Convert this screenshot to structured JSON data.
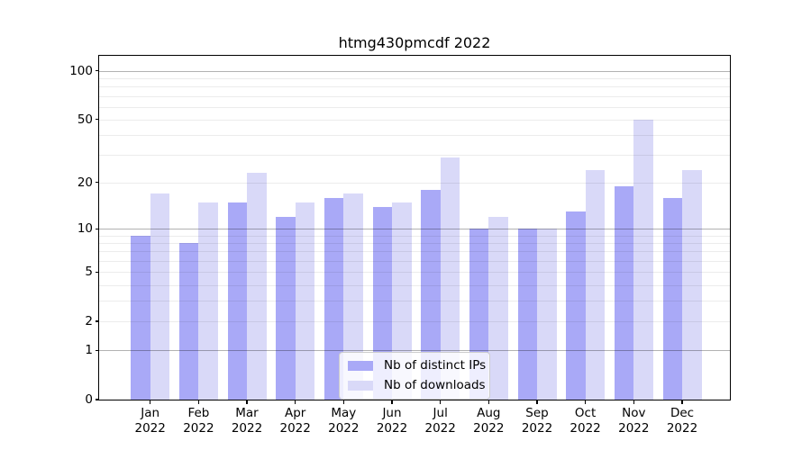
{
  "title": "htmg430pmcdf 2022",
  "chart_data": {
    "type": "bar",
    "title": "htmg430pmcdf 2022",
    "categories": [
      "Jan 2022",
      "Feb 2022",
      "Mar 2022",
      "Apr 2022",
      "May 2022",
      "Jun 2022",
      "Jul 2022",
      "Aug 2022",
      "Sep 2022",
      "Oct 2022",
      "Nov 2022",
      "Dec 2022"
    ],
    "series": [
      {
        "name": "Nb of distinct IPs",
        "color": "#a9a9f7",
        "values": [
          9,
          8,
          15,
          12,
          16,
          14,
          18,
          10,
          10,
          13,
          19,
          16
        ]
      },
      {
        "name": "Nb of downloads",
        "color": "#d9d9f8",
        "values": [
          17,
          15,
          23,
          15,
          17,
          15,
          29,
          12,
          10,
          24,
          50,
          24
        ]
      }
    ],
    "xlabel": "",
    "ylabel": "",
    "yscale": "log1p",
    "ylim": [
      0,
      123.5
    ],
    "yticks": [
      100,
      50,
      20,
      10,
      5,
      2,
      1,
      0
    ],
    "grid": true,
    "grid_major": [
      1,
      10,
      100
    ],
    "grid_minor": [
      2,
      3,
      4,
      5,
      6,
      7,
      8,
      9,
      20,
      30,
      40,
      50,
      60,
      70,
      80,
      90
    ],
    "legend_position": "lower center"
  },
  "colors": {
    "bar_ips": "#a9a9f7",
    "bar_downloads": "#d9d9f8",
    "grid_major": "#b2b2b2",
    "grid_minor": "#ececec",
    "axis": "#000000"
  }
}
